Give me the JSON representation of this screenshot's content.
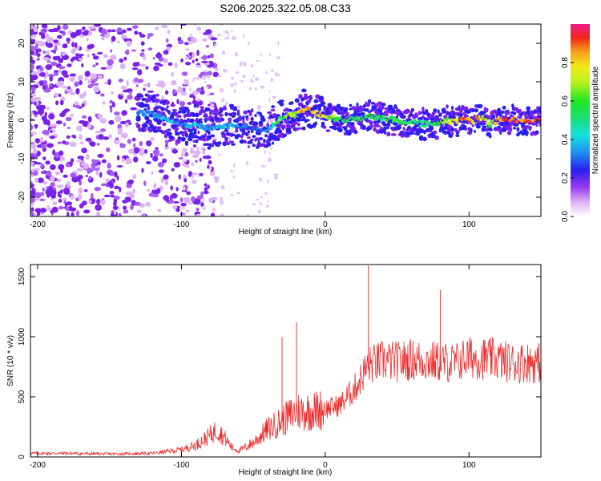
{
  "title": "S206.2025.322.05.08.C33",
  "colors": {
    "snr_line": "#ee2b2b",
    "axis": "#000000",
    "background": "#ffffff"
  },
  "chart_data": [
    {
      "type": "heatmap",
      "name": "spectrogram",
      "xlabel": "Height of straight line (km)",
      "ylabel": "Frequency (Hz)",
      "xlim": [
        -205,
        150
      ],
      "ylim": [
        -25,
        25
      ],
      "x_ticks": [
        -200,
        -100,
        0,
        100
      ],
      "x_tick_labels": [
        "-200",
        "-100",
        "0",
        "100"
      ],
      "y_ticks": [
        -20,
        -10,
        0,
        10,
        20
      ],
      "y_tick_labels": [
        "-20",
        "-10",
        "0",
        "10",
        "20"
      ],
      "ridge": {
        "description_values_only": true,
        "x": [
          -130,
          -120,
          -110,
          -100,
          -90,
          -80,
          -70,
          -60,
          -50,
          -40,
          -30,
          -20,
          -15,
          -10,
          -5,
          0,
          10,
          20,
          30,
          40,
          50,
          60,
          70,
          80,
          90,
          100,
          110,
          115,
          120,
          130,
          140,
          150
        ],
        "freq": [
          2,
          1.5,
          0.5,
          -1,
          -1.5,
          -2,
          -1.5,
          -1.5,
          -2,
          -2.5,
          0.5,
          1.5,
          3,
          2.5,
          1.5,
          1.5,
          0,
          0.5,
          1,
          0.5,
          0,
          -0.5,
          -1,
          -0.5,
          0,
          0,
          0.5,
          -1,
          0,
          0,
          0,
          0
        ],
        "amplitude": [
          0.3,
          0.35,
          0.4,
          0.35,
          0.4,
          0.35,
          0.4,
          0.35,
          0.3,
          0.35,
          0.6,
          0.75,
          0.9,
          0.85,
          0.8,
          0.75,
          0.6,
          0.55,
          0.6,
          0.5,
          0.6,
          0.55,
          0.5,
          0.6,
          0.85,
          0.9,
          0.8,
          0.6,
          0.85,
          0.9,
          0.95,
          0.95
        ]
      },
      "colorbar": {
        "label": "Normalized spectral amplitude",
        "range": [
          0,
          1
        ],
        "ticks": [
          0.0,
          0.2,
          0.4,
          0.6,
          0.8
        ],
        "tick_labels": [
          "0.0",
          "0.2",
          "0.4",
          "0.6",
          "0.8"
        ]
      }
    },
    {
      "type": "line",
      "name": "snr",
      "xlabel": "Height of straight line (km)",
      "ylabel": "SNR (10 * v/v)",
      "xlim": [
        -205,
        150
      ],
      "ylim": [
        0,
        1600
      ],
      "x_ticks": [
        -200,
        -100,
        0,
        100
      ],
      "x_tick_labels": [
        "-200",
        "-100",
        "0",
        "100"
      ],
      "y_ticks": [
        0,
        500,
        1000,
        1500
      ],
      "y_tick_labels": [
        "0",
        "500",
        "1000",
        "1500"
      ],
      "series": [
        {
          "name": "SNR",
          "x": [
            -205,
            -180,
            -150,
            -120,
            -100,
            -90,
            -80,
            -75,
            -70,
            -65,
            -60,
            -50,
            -40,
            -30,
            -20,
            -10,
            0,
            10,
            20,
            30,
            40,
            50,
            60,
            70,
            80,
            90,
            100,
            110,
            120,
            130,
            140,
            150
          ],
          "y": [
            30,
            30,
            25,
            30,
            60,
            100,
            180,
            230,
            160,
            80,
            50,
            120,
            230,
            300,
            380,
            380,
            400,
            430,
            560,
            760,
            800,
            790,
            810,
            800,
            790,
            780,
            830,
            820,
            810,
            780,
            790,
            780
          ]
        }
      ],
      "annotations": [
        {
          "x": -30,
          "y": 1000
        },
        {
          "x": -20,
          "y": 1120
        },
        {
          "x": 30,
          "y": 1590
        },
        {
          "x": 80,
          "y": 1390
        }
      ]
    }
  ]
}
